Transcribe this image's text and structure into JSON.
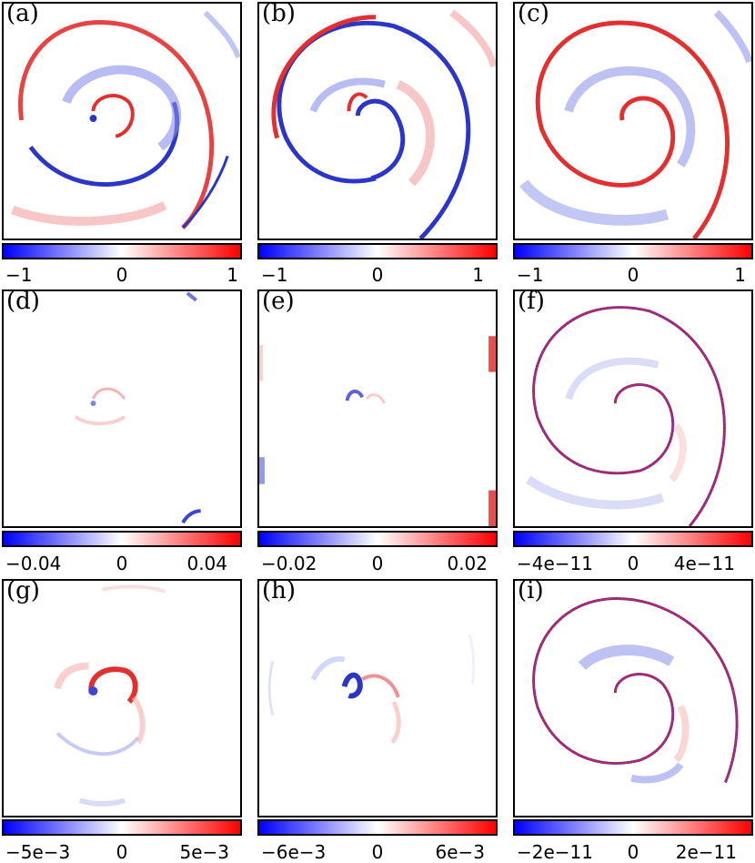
{
  "chart_data": [
    {
      "type": "heatmap",
      "label": "(a)",
      "colorbar": {
        "min_label": "−1",
        "mid_label": "0",
        "max_label": "1",
        "range": [
          -1,
          1
        ],
        "colors": [
          "#0000ff",
          "#ffffff",
          "#ff0000"
        ]
      }
    },
    {
      "type": "heatmap",
      "label": "(b)",
      "colorbar": {
        "min_label": "−1",
        "mid_label": "0",
        "max_label": "1",
        "range": [
          -1,
          1
        ],
        "colors": [
          "#0000ff",
          "#ffffff",
          "#ff0000"
        ]
      }
    },
    {
      "type": "heatmap",
      "label": "(c)",
      "colorbar": {
        "min_label": "−1",
        "mid_label": "0",
        "max_label": "1",
        "range": [
          -1,
          1
        ],
        "colors": [
          "#0000ff",
          "#ffffff",
          "#ff0000"
        ]
      }
    },
    {
      "type": "heatmap",
      "label": "(d)",
      "colorbar": {
        "min_label": "−0.04",
        "mid_label": "0",
        "max_label": "0.04",
        "range": [
          -0.04,
          0.04
        ],
        "colors": [
          "#0000ff",
          "#ffffff",
          "#ff0000"
        ]
      }
    },
    {
      "type": "heatmap",
      "label": "(e)",
      "colorbar": {
        "min_label": "−0.02",
        "mid_label": "0",
        "max_label": "0.02",
        "range": [
          -0.02,
          0.02
        ],
        "colors": [
          "#0000ff",
          "#ffffff",
          "#ff0000"
        ]
      }
    },
    {
      "type": "heatmap",
      "label": "(f)",
      "colorbar": {
        "min_label": "−4e−11",
        "mid_label": "0",
        "max_label": "4e−11",
        "range": [
          -4e-11,
          4e-11
        ],
        "colors": [
          "#0000ff",
          "#ffffff",
          "#ff0000"
        ]
      }
    },
    {
      "type": "heatmap",
      "label": "(g)",
      "colorbar": {
        "min_label": "−5e−3",
        "mid_label": "0",
        "max_label": "5e−3",
        "range": [
          -0.005,
          0.005
        ],
        "colors": [
          "#0000ff",
          "#ffffff",
          "#ff0000"
        ]
      }
    },
    {
      "type": "heatmap",
      "label": "(h)",
      "colorbar": {
        "min_label": "−6e−3",
        "mid_label": "0",
        "max_label": "6e−3",
        "range": [
          -0.006,
          0.006
        ],
        "colors": [
          "#0000ff",
          "#ffffff",
          "#ff0000"
        ]
      }
    },
    {
      "type": "heatmap",
      "label": "(i)",
      "colorbar": {
        "min_label": "−2e−11",
        "mid_label": "0",
        "max_label": "2e−11",
        "range": [
          -2e-11,
          2e-11
        ],
        "colors": [
          "#0000ff",
          "#ffffff",
          "#ff0000"
        ]
      }
    }
  ]
}
